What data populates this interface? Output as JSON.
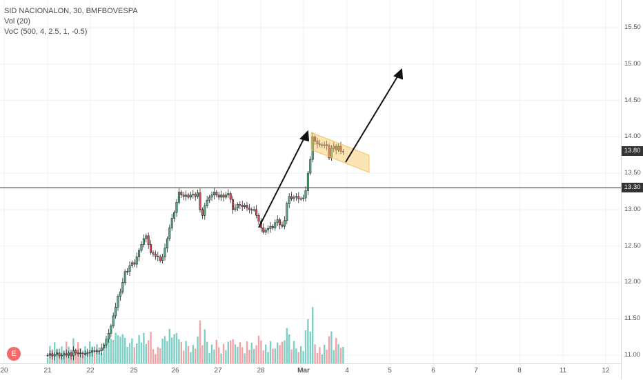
{
  "legend": {
    "symbol": "SID NACIONALON, 30, BMFBOVESPA",
    "volume": "Vol (20)",
    "voc": "VoC (500, 4, 2.5, 1, -0.5)"
  },
  "colors": {
    "up": "#53b987",
    "down": "#eb4d5c",
    "vol_up": "#7fcfc4",
    "vol_down": "#f3a3a6",
    "channel": "#f7c35c",
    "hline": "#555555",
    "last_price_tag": "#333333",
    "current_price_tag": "#333333",
    "earnings": "#f26b6b"
  },
  "price_axis": {
    "ticks": [
      "15.50",
      "15.00",
      "14.50",
      "14.00",
      "13.50",
      "13.00",
      "12.50",
      "12.00",
      "11.50",
      "11.00"
    ],
    "current_price": "13.80",
    "line_price": "13.30"
  },
  "time_axis": {
    "ticks": [
      "20",
      "21",
      "22",
      "25",
      "26",
      "27",
      "28",
      "Mar",
      "4",
      "5",
      "6",
      "7",
      "8",
      "11",
      "12"
    ]
  },
  "earnings_badge": "E",
  "chart_data": {
    "type": "candlestick",
    "symbol": "SID NACIONALON",
    "interval": "30",
    "ylim": [
      10.95,
      15.7
    ],
    "horizontal_line": 13.3,
    "closes": [
      11.0,
      11.02,
      10.99,
      11.01,
      11.03,
      10.99,
      11.0,
      11.02,
      11.0,
      11.03,
      10.99,
      11.06,
      11.03,
      11.02,
      11.03,
      11.02,
      11.02,
      11.03,
      11.04,
      11.06,
      11.05,
      11.06,
      11.06,
      11.1,
      11.14,
      11.22,
      11.3,
      11.4,
      11.54,
      11.66,
      11.81,
      11.87,
      12.0,
      12.15,
      12.15,
      12.23,
      12.27,
      12.25,
      12.35,
      12.44,
      12.52,
      12.6,
      12.64,
      12.52,
      12.41,
      12.39,
      12.36,
      12.35,
      12.3,
      12.35,
      12.47,
      12.6,
      12.75,
      12.88,
      12.96,
      13.1,
      13.24,
      13.2,
      13.18,
      13.2,
      13.17,
      13.2,
      13.21,
      13.18,
      13.23,
      13.0,
      12.92,
      13.05,
      13.13,
      13.17,
      13.2,
      13.24,
      13.2,
      13.17,
      13.2,
      13.17,
      13.2,
      13.22,
      13.14,
      13.0,
      13.02,
      13.07,
      13.06,
      13.04,
      13.06,
      13.02,
      13.0,
      13.0,
      13.0,
      12.92,
      12.84,
      12.75,
      12.69,
      12.72,
      12.74,
      12.77,
      12.75,
      12.82,
      12.86,
      12.79,
      12.77,
      12.85,
      13.08,
      13.18,
      13.15,
      13.17,
      13.18,
      13.15,
      13.15,
      13.16,
      13.26,
      13.5,
      13.69,
      14.0,
      13.94,
      13.9,
      13.89,
      13.89,
      13.89,
      13.88,
      13.71,
      13.84,
      13.87,
      13.82,
      13.87,
      13.8,
      13.8
    ]
  }
}
